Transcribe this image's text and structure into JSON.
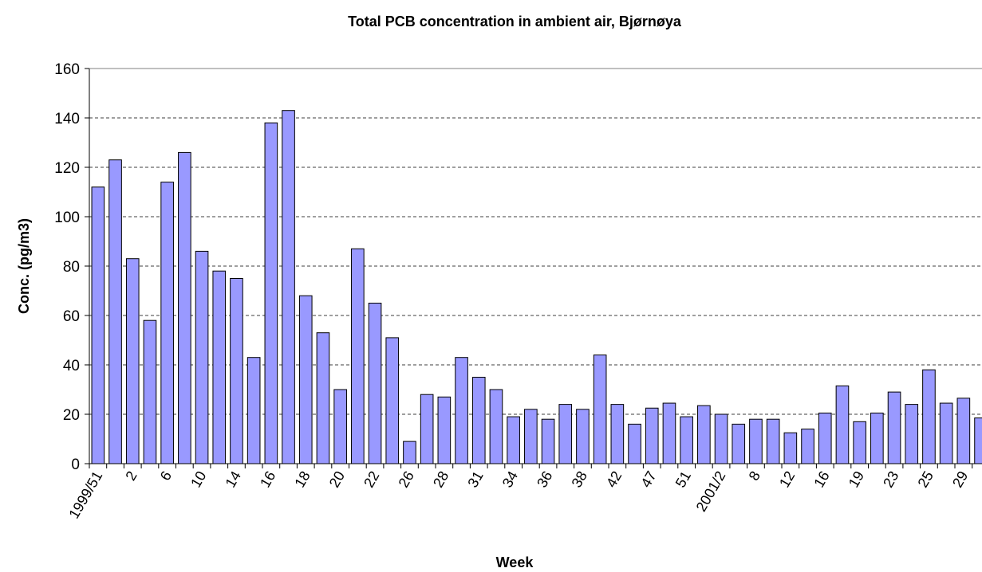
{
  "chart_data": {
    "type": "bar",
    "title": "Total PCB concentration in ambient air, Bjørnøya",
    "x_label": "Week",
    "y_label": "Conc. (pg/m3)",
    "categories": [
      "1999/51",
      null,
      "2",
      null,
      "6",
      null,
      "10",
      null,
      "14",
      null,
      "16",
      null,
      "18",
      null,
      "20",
      null,
      "22",
      null,
      "26",
      null,
      "28",
      null,
      "31",
      null,
      "34",
      null,
      "36",
      null,
      "38",
      null,
      "42",
      null,
      "47",
      null,
      "51",
      null,
      "2001/2",
      null,
      "8",
      null,
      "12",
      null,
      "16",
      null,
      "19",
      null,
      "23",
      null,
      "25",
      null,
      "29",
      null
    ],
    "values": [
      112,
      123,
      83,
      58,
      114,
      126,
      86,
      78,
      75,
      43,
      138,
      143,
      68,
      53,
      30,
      87,
      65,
      51,
      9,
      28,
      27,
      43,
      35,
      30,
      19,
      22,
      18,
      24,
      22,
      44,
      24,
      16,
      22.5,
      24.5,
      19,
      23.5,
      20,
      16,
      18,
      18,
      12.5,
      14,
      20.5,
      31.5,
      17,
      20.5,
      29,
      24,
      38,
      24.5,
      26.5,
      18.5
    ],
    "color": "#9999ff",
    "ylim": [
      0,
      160
    ],
    "yticks": [
      0,
      20,
      40,
      60,
      80,
      100,
      120,
      140,
      160
    ],
    "grid": true
  }
}
